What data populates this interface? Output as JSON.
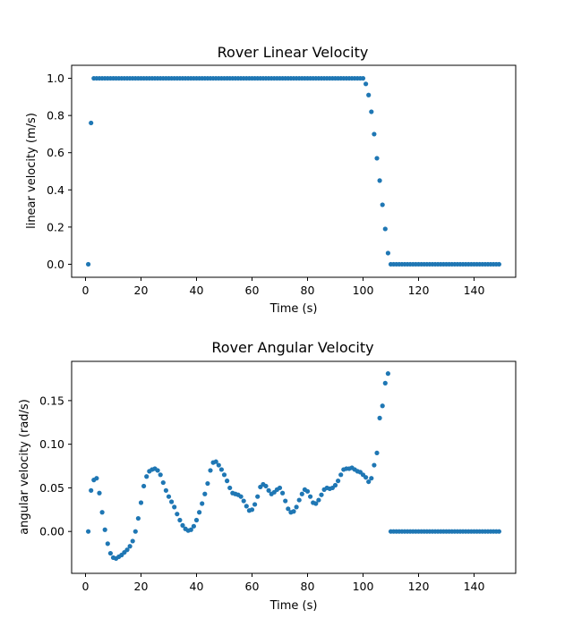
{
  "chart_data": [
    {
      "type": "scatter",
      "title": "Rover Linear Velocity",
      "xlabel": "Time (s)",
      "ylabel": "linear velocity (m/s)",
      "xlim": [
        -5,
        155
      ],
      "ylim": [
        -0.07,
        1.07
      ],
      "xticks": [
        0,
        20,
        40,
        60,
        80,
        100,
        120,
        140
      ],
      "yticks": [
        0.0,
        0.2,
        0.4,
        0.6,
        0.8,
        1.0
      ],
      "xtick_labels": [
        "0",
        "20",
        "40",
        "60",
        "80",
        "100",
        "120",
        "140"
      ],
      "ytick_labels": [
        "0.0",
        "0.2",
        "0.4",
        "0.6",
        "0.8",
        "1.0"
      ],
      "color": "#1f77b4",
      "grid": false,
      "series": [
        {
          "x": [
            1,
            2,
            3,
            4,
            5,
            6,
            7,
            8,
            9,
            10,
            11,
            12,
            13,
            14,
            15,
            16,
            17,
            18,
            19,
            20,
            21,
            22,
            23,
            24,
            25,
            26,
            27,
            28,
            29,
            30,
            31,
            32,
            33,
            34,
            35,
            36,
            37,
            38,
            39,
            40,
            41,
            42,
            43,
            44,
            45,
            46,
            47,
            48,
            49,
            50,
            51,
            52,
            53,
            54,
            55,
            56,
            57,
            58,
            59,
            60,
            61,
            62,
            63,
            64,
            65,
            66,
            67,
            68,
            69,
            70,
            71,
            72,
            73,
            74,
            75,
            76,
            77,
            78,
            79,
            80,
            81,
            82,
            83,
            84,
            85,
            86,
            87,
            88,
            89,
            90,
            91,
            92,
            93,
            94,
            95,
            96,
            97,
            98,
            99,
            100,
            101,
            102,
            103,
            104,
            105,
            106,
            107,
            108,
            109,
            110,
            111,
            112,
            113,
            114,
            115,
            116,
            117,
            118,
            119,
            120,
            121,
            122,
            123,
            124,
            125,
            126,
            127,
            128,
            129,
            130,
            131,
            132,
            133,
            134,
            135,
            136,
            137,
            138,
            139,
            140,
            141,
            142,
            143,
            144,
            145,
            146,
            147,
            148,
            149
          ],
          "y": [
            0.0,
            0.76,
            1.0,
            1.0,
            1.0,
            1.0,
            1.0,
            1.0,
            1.0,
            1.0,
            1.0,
            1.0,
            1.0,
            1.0,
            1.0,
            1.0,
            1.0,
            1.0,
            1.0,
            1.0,
            1.0,
            1.0,
            1.0,
            1.0,
            1.0,
            1.0,
            1.0,
            1.0,
            1.0,
            1.0,
            1.0,
            1.0,
            1.0,
            1.0,
            1.0,
            1.0,
            1.0,
            1.0,
            1.0,
            1.0,
            1.0,
            1.0,
            1.0,
            1.0,
            1.0,
            1.0,
            1.0,
            1.0,
            1.0,
            1.0,
            1.0,
            1.0,
            1.0,
            1.0,
            1.0,
            1.0,
            1.0,
            1.0,
            1.0,
            1.0,
            1.0,
            1.0,
            1.0,
            1.0,
            1.0,
            1.0,
            1.0,
            1.0,
            1.0,
            1.0,
            1.0,
            1.0,
            1.0,
            1.0,
            1.0,
            1.0,
            1.0,
            1.0,
            1.0,
            1.0,
            1.0,
            1.0,
            1.0,
            1.0,
            1.0,
            1.0,
            1.0,
            1.0,
            1.0,
            1.0,
            1.0,
            1.0,
            1.0,
            1.0,
            1.0,
            1.0,
            1.0,
            1.0,
            1.0,
            1.0,
            0.97,
            0.91,
            0.82,
            0.7,
            0.57,
            0.45,
            0.32,
            0.19,
            0.06,
            0.0,
            0.0,
            0.0,
            0.0,
            0.0,
            0.0,
            0.0,
            0.0,
            0.0,
            0.0,
            0.0,
            0.0,
            0.0,
            0.0,
            0.0,
            0.0,
            0.0,
            0.0,
            0.0,
            0.0,
            0.0,
            0.0,
            0.0,
            0.0,
            0.0,
            0.0,
            0.0,
            0.0,
            0.0,
            0.0,
            0.0,
            0.0,
            0.0,
            0.0,
            0.0,
            0.0,
            0.0,
            0.0,
            0.0,
            0.0
          ]
        }
      ]
    },
    {
      "type": "scatter",
      "title": "Rover Angular Velocity",
      "xlabel": "Time (s)",
      "ylabel": "angular velocity (rad/s)",
      "xlim": [
        -5,
        155
      ],
      "ylim": [
        -0.048,
        0.195
      ],
      "xticks": [
        0,
        20,
        40,
        60,
        80,
        100,
        120,
        140
      ],
      "yticks": [
        0.0,
        0.05,
        0.1,
        0.15
      ],
      "xtick_labels": [
        "0",
        "20",
        "40",
        "60",
        "80",
        "100",
        "120",
        "140"
      ],
      "ytick_labels": [
        "0.00",
        "0.05",
        "0.10",
        "0.15"
      ],
      "color": "#1f77b4",
      "grid": false,
      "series": [
        {
          "x": [
            1,
            2,
            3,
            4,
            5,
            6,
            7,
            8,
            9,
            10,
            11,
            12,
            13,
            14,
            15,
            16,
            17,
            18,
            19,
            20,
            21,
            22,
            23,
            24,
            25,
            26,
            27,
            28,
            29,
            30,
            31,
            32,
            33,
            34,
            35,
            36,
            37,
            38,
            39,
            40,
            41,
            42,
            43,
            44,
            45,
            46,
            47,
            48,
            49,
            50,
            51,
            52,
            53,
            54,
            55,
            56,
            57,
            58,
            59,
            60,
            61,
            62,
            63,
            64,
            65,
            66,
            67,
            68,
            69,
            70,
            71,
            72,
            73,
            74,
            75,
            76,
            77,
            78,
            79,
            80,
            81,
            82,
            83,
            84,
            85,
            86,
            87,
            88,
            89,
            90,
            91,
            92,
            93,
            94,
            95,
            96,
            97,
            98,
            99,
            100,
            101,
            102,
            103,
            104,
            105,
            106,
            107,
            108,
            109,
            110,
            111,
            112,
            113,
            114,
            115,
            116,
            117,
            118,
            119,
            120,
            121,
            122,
            123,
            124,
            125,
            126,
            127,
            128,
            129,
            130,
            131,
            132,
            133,
            134,
            135,
            136,
            137,
            138,
            139,
            140,
            141,
            142,
            143,
            144,
            145,
            146,
            147,
            148,
            149
          ],
          "y": [
            0.0,
            0.047,
            0.059,
            0.061,
            0.044,
            0.022,
            0.002,
            -0.014,
            -0.025,
            -0.03,
            -0.031,
            -0.029,
            -0.027,
            -0.024,
            -0.021,
            -0.017,
            -0.011,
            0.0,
            0.015,
            0.033,
            0.052,
            0.063,
            0.069,
            0.071,
            0.072,
            0.07,
            0.065,
            0.056,
            0.047,
            0.04,
            0.034,
            0.028,
            0.02,
            0.013,
            0.007,
            0.003,
            0.001,
            0.002,
            0.006,
            0.013,
            0.022,
            0.032,
            0.043,
            0.055,
            0.07,
            0.079,
            0.08,
            0.076,
            0.071,
            0.065,
            0.058,
            0.05,
            0.044,
            0.043,
            0.042,
            0.04,
            0.035,
            0.029,
            0.024,
            0.025,
            0.031,
            0.04,
            0.051,
            0.054,
            0.052,
            0.047,
            0.043,
            0.045,
            0.048,
            0.05,
            0.044,
            0.035,
            0.026,
            0.022,
            0.023,
            0.028,
            0.036,
            0.043,
            0.048,
            0.046,
            0.04,
            0.033,
            0.032,
            0.036,
            0.042,
            0.048,
            0.05,
            0.049,
            0.05,
            0.053,
            0.058,
            0.065,
            0.071,
            0.072,
            0.072,
            0.073,
            0.071,
            0.069,
            0.068,
            0.065,
            0.062,
            0.057,
            0.061,
            0.076,
            0.09,
            0.13,
            0.144,
            0.17,
            0.181,
            0.0,
            0.0,
            0.0,
            0.0,
            0.0,
            0.0,
            0.0,
            0.0,
            0.0,
            0.0,
            0.0,
            0.0,
            0.0,
            0.0,
            0.0,
            0.0,
            0.0,
            0.0,
            0.0,
            0.0,
            0.0,
            0.0,
            0.0,
            0.0,
            0.0,
            0.0,
            0.0,
            0.0,
            0.0,
            0.0,
            0.0,
            0.0,
            0.0,
            0.0,
            0.0,
            0.0,
            0.0,
            0.0,
            0.0,
            0.0
          ]
        }
      ]
    }
  ]
}
